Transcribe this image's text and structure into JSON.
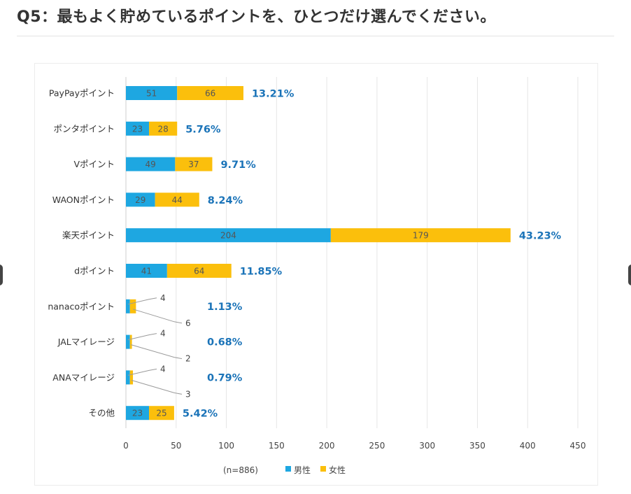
{
  "page": {
    "title": "Q5：最もよく貯めているポイントを、ひとつだけ選んでください。"
  },
  "chart_data": {
    "type": "bar",
    "orientation": "horizontal",
    "stacked": true,
    "categories": [
      "PayPayポイント",
      "ポンタポイント",
      "Vポイント",
      "WAONポイント",
      "楽天ポイント",
      "dポイント",
      "nanacoポイント",
      "JALマイレージ",
      "ANAマイレージ",
      "その他"
    ],
    "series": [
      {
        "name": "男性",
        "color": "#1ea7e1",
        "values": [
          51,
          23,
          49,
          29,
          204,
          41,
          4,
          4,
          4,
          23
        ]
      },
      {
        "name": "女性",
        "color": "#fbbf0c",
        "values": [
          66,
          28,
          37,
          44,
          179,
          64,
          6,
          2,
          3,
          25
        ]
      }
    ],
    "totals_pct": [
      "13.21%",
      "5.76%",
      "9.71%",
      "8.24%",
      "43.23%",
      "11.85%",
      "1.13%",
      "0.68%",
      "0.79%",
      "5.42%"
    ],
    "xlim": [
      0,
      450
    ],
    "xticks": [
      0,
      50,
      100,
      150,
      200,
      250,
      300,
      350,
      400,
      450
    ],
    "grid": true,
    "legend_position": "bottom",
    "note": "(n=886)"
  }
}
